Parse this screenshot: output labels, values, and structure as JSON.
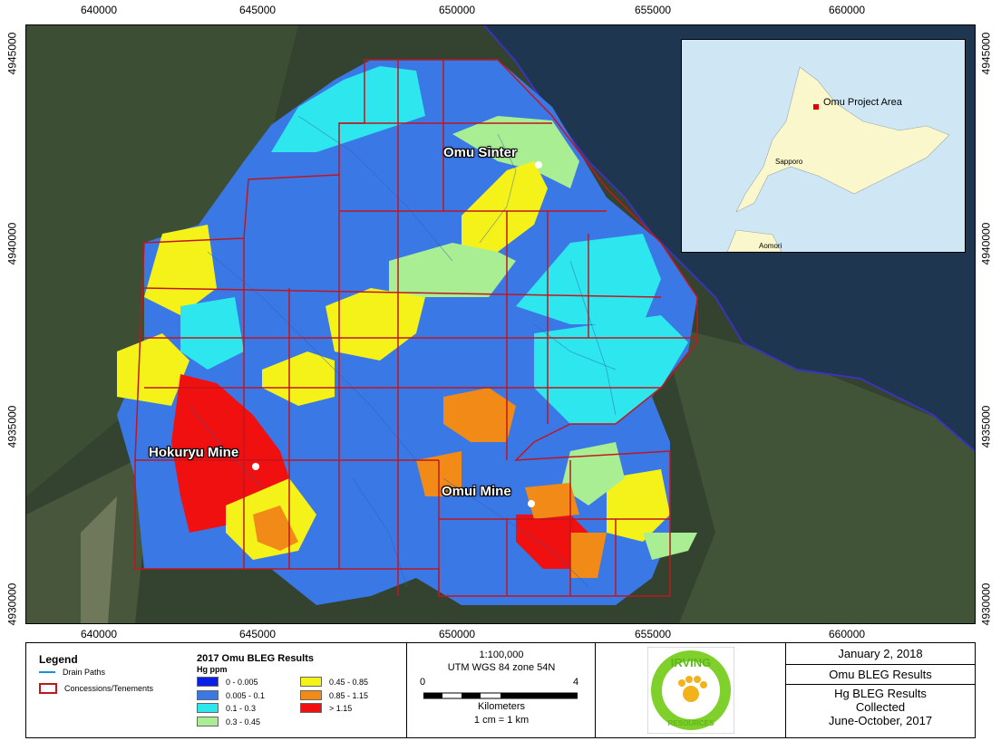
{
  "coords": {
    "top_x": [
      "640000",
      "645000",
      "650000",
      "655000",
      "660000"
    ],
    "bottom_x": [
      "640000",
      "645000",
      "650000",
      "655000",
      "660000"
    ],
    "left_y": [
      "4945000",
      "4940000",
      "4935000",
      "4930000"
    ],
    "right_y": [
      "4945000",
      "4940000",
      "4935000",
      "4930000"
    ]
  },
  "map_labels": {
    "omu_sinter": "Omu Sinter",
    "hokuryu_mine": "Hokuryu Mine",
    "omui_mine": "Omui Mine"
  },
  "inset": {
    "project_area": "Omu Project Area",
    "sapporo": "Sapporo",
    "aomori": "Aomori"
  },
  "legend": {
    "title": "Legend",
    "items": [
      {
        "label": "Drain Paths",
        "color": "#1a8fd1"
      },
      {
        "label": "Concessions/Tenements",
        "color": "#c0171f"
      }
    ]
  },
  "results": {
    "title": "2017 Omu BLEG Results",
    "subtitle": "Hg ppm",
    "classes": [
      {
        "label": "0 - 0.005",
        "color": "#0a1fe6"
      },
      {
        "label": "0.005 - 0.1",
        "color": "#3a78e6"
      },
      {
        "label": "0.1 - 0.3",
        "color": "#2ee6ee"
      },
      {
        "label": "0.3 - 0.45",
        "color": "#a9ee93"
      },
      {
        "label": "0.45 - 0.85",
        "color": "#f5f21a"
      },
      {
        "label": "0.85 - 1.15",
        "color": "#f28a17"
      },
      {
        "label": "> 1.15",
        "color": "#f01010"
      }
    ]
  },
  "scale": {
    "ratio": "1:100,000",
    "projection": "UTM WGS 84 zone 54N",
    "tick_start": "0",
    "tick_end": "4",
    "unit": "Kilometers",
    "conversion": "1 cm = 1 km"
  },
  "logo": {
    "top_text": "IRVING",
    "bottom_text": "RESOURCES"
  },
  "info": {
    "date": "January 2, 2018",
    "title": "Omu BLEG Results",
    "line1": "Hg BLEG Results",
    "line2": "Collected",
    "line3": "June-October, 2017"
  }
}
